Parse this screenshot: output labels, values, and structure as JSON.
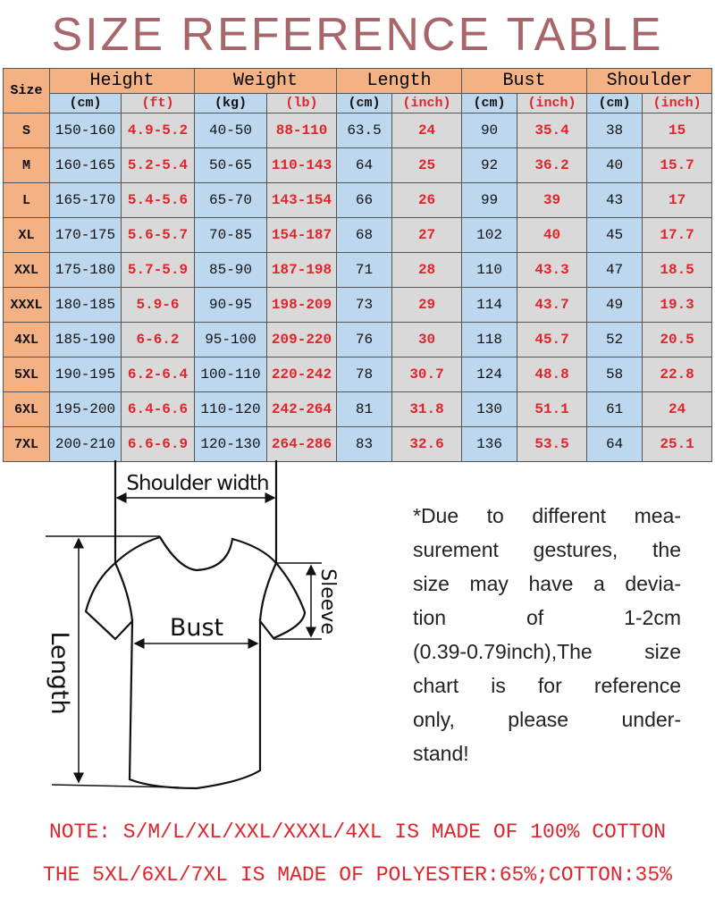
{
  "title": "SIZE REFERENCE TABLE",
  "table": {
    "size_header": "Size",
    "groups": [
      "Height",
      "Weight",
      "Length",
      "Bust",
      "Shoulder"
    ],
    "units": [
      "(cm)",
      "(ft)",
      "(kg)",
      "(lb)",
      "(cm)",
      "(inch)",
      "(cm)",
      "(inch)",
      "(cm)",
      "(inch)"
    ],
    "rows": [
      [
        "S",
        "150-160",
        "4.9-5.2",
        "40-50",
        "88-110",
        "63.5",
        "24",
        "90",
        "35.4",
        "38",
        "15"
      ],
      [
        "M",
        "160-165",
        "5.2-5.4",
        "50-65",
        "110-143",
        "64",
        "25",
        "92",
        "36.2",
        "40",
        "15.7"
      ],
      [
        "L",
        "165-170",
        "5.4-5.6",
        "65-70",
        "143-154",
        "66",
        "26",
        "99",
        "39",
        "43",
        "17"
      ],
      [
        "XL",
        "170-175",
        "5.6-5.7",
        "70-85",
        "154-187",
        "68",
        "27",
        "102",
        "40",
        "45",
        "17.7"
      ],
      [
        "XXL",
        "175-180",
        "5.7-5.9",
        "85-90",
        "187-198",
        "71",
        "28",
        "110",
        "43.3",
        "47",
        "18.5"
      ],
      [
        "XXXL",
        "180-185",
        "5.9-6",
        "90-95",
        "198-209",
        "73",
        "29",
        "114",
        "43.7",
        "49",
        "19.3"
      ],
      [
        "4XL",
        "185-190",
        "6-6.2",
        "95-100",
        "209-220",
        "76",
        "30",
        "118",
        "45.7",
        "52",
        "20.5"
      ],
      [
        "5XL",
        "190-195",
        "6.2-6.4",
        "100-110",
        "220-242",
        "78",
        "30.7",
        "124",
        "48.8",
        "58",
        "22.8"
      ],
      [
        "6XL",
        "195-200",
        "6.4-6.6",
        "110-120",
        "242-264",
        "81",
        "31.8",
        "130",
        "51.1",
        "61",
        "24"
      ],
      [
        "7XL",
        "200-210",
        "6.6-6.9",
        "120-130",
        "264-286",
        "83",
        "32.6",
        "136",
        "53.5",
        "64",
        "25.1"
      ]
    ]
  },
  "diagram": {
    "shoulder": "Shoulder width",
    "bust": "Bust",
    "length": "Length",
    "sleeve": "Sleeve"
  },
  "note_lines": [
    "*Due to different mea-",
    "surement gestures, the",
    "size may have a devia-",
    "tion of 1-2cm",
    "(0.39-0.79inch),The size",
    "chart is for reference",
    "only, please under-",
    "stand!"
  ],
  "footer": [
    "NOTE: S/M/L/XL/XXL/XXXL/4XL IS MADE OF 100% COTTON",
    "THE 5XL/6XL/7XL IS MADE OF POLYESTER:65%;COTTON:35%"
  ],
  "colors": {
    "header": "#f4b183",
    "blue": "#bdd7ee",
    "gray": "#d9d9d9",
    "red": "#e0242b",
    "title": "#a8666a"
  }
}
